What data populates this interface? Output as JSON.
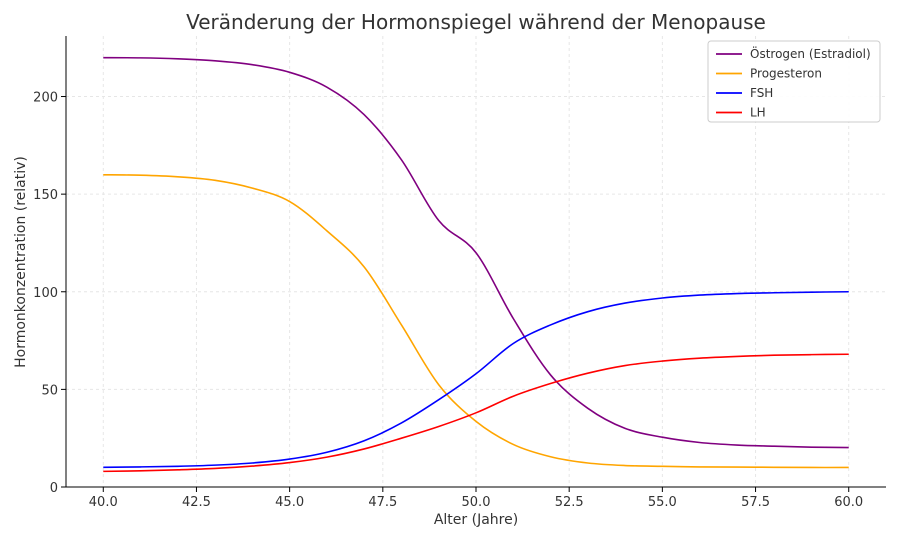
{
  "chart_data": {
    "type": "line",
    "title": "Veränderung der Hormonspiegel während der Menopause",
    "xlabel": "Alter (Jahre)",
    "ylabel": "Hormonkonzentration (relativ)",
    "xlim": [
      39.0,
      61.0
    ],
    "ylim": [
      0,
      231
    ],
    "x_ticks": [
      40.0,
      42.5,
      45.0,
      47.5,
      50.0,
      52.5,
      55.0,
      57.5,
      60.0
    ],
    "x_tick_labels": [
      "40.0",
      "42.5",
      "45.0",
      "47.5",
      "50.0",
      "52.5",
      "55.0",
      "57.5",
      "60.0"
    ],
    "y_ticks": [
      0,
      50,
      100,
      150,
      200
    ],
    "y_tick_labels": [
      "0",
      "50",
      "100",
      "150",
      "200"
    ],
    "grid": true,
    "legend_position": "top-right",
    "x": [
      40,
      41,
      42,
      43,
      44,
      45,
      46,
      47,
      48,
      49,
      50,
      51,
      52,
      53,
      54,
      55,
      56,
      57,
      58,
      59,
      60
    ],
    "series": [
      {
        "name": "Östrogen (Estradiol)",
        "color": "#800080",
        "values": [
          219.9,
          219.8,
          219.3,
          218.3,
          216.3,
          212.4,
          204.8,
          190.7,
          167.6,
          136.5,
          120.0,
          86.3,
          57.4,
          40.3,
          30.0,
          25.5,
          22.8,
          21.5,
          20.9,
          20.4,
          20.2
        ]
      },
      {
        "name": "Progesteron",
        "color": "#FFA500",
        "values": [
          159.9,
          159.7,
          158.9,
          157.1,
          153.1,
          146.2,
          131.2,
          112.7,
          83.0,
          52.4,
          33.6,
          21.8,
          15.5,
          12.3,
          11.0,
          10.6,
          10.3,
          10.2,
          10.1,
          10.0,
          10.0
        ]
      },
      {
        "name": "FSH",
        "color": "#0000FF",
        "values": [
          10.1,
          10.3,
          10.6,
          11.2,
          12.3,
          14.3,
          17.8,
          23.7,
          32.8,
          44.7,
          58.0,
          73.5,
          83.0,
          89.8,
          94.2,
          96.8,
          98.3,
          99.1,
          99.5,
          99.8,
          100.0
        ]
      },
      {
        "name": "LH",
        "color": "#FF0000",
        "values": [
          8.0,
          8.3,
          8.8,
          9.5,
          10.7,
          12.5,
          15.3,
          19.5,
          25.0,
          31.0,
          38.0,
          46.5,
          53.0,
          58.3,
          62.2,
          64.5,
          66.0,
          66.9,
          67.5,
          67.8,
          68.0
        ]
      }
    ]
  }
}
